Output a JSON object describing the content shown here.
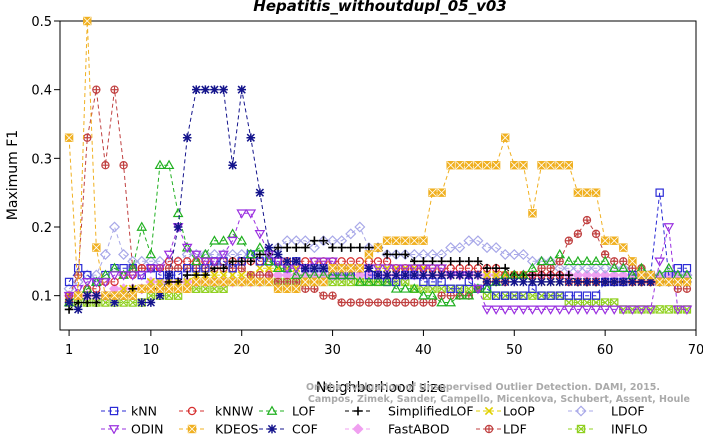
{
  "chart_data": {
    "type": "line",
    "title": "Hepatitis_withoutdupl_05_v03",
    "xlabel": "Neighborhood size",
    "ylabel": "Maximum F1",
    "xlim": [
      0,
      70
    ],
    "ylim": [
      0.05,
      0.5
    ],
    "xticks": [
      1,
      10,
      20,
      30,
      40,
      50,
      60,
      70
    ],
    "yticks": [
      0.1,
      0.2,
      0.3,
      0.4,
      0.5
    ],
    "credit_lines": [
      "Campos, Zimek, Sander, Campello, Micenkova, Schubert, Assent, Houle",
      "On the Evaluation of Unsupervised Outlier Detection. DAMI, 2015."
    ],
    "x": [
      1,
      2,
      3,
      4,
      5,
      6,
      7,
      8,
      9,
      10,
      11,
      12,
      13,
      14,
      15,
      16,
      17,
      18,
      19,
      20,
      21,
      22,
      23,
      24,
      25,
      26,
      27,
      28,
      29,
      30,
      31,
      32,
      33,
      34,
      35,
      36,
      37,
      38,
      39,
      40,
      41,
      42,
      43,
      44,
      45,
      46,
      47,
      48,
      49,
      50,
      51,
      52,
      53,
      54,
      55,
      56,
      57,
      58,
      59,
      60,
      61,
      62,
      63,
      64,
      65,
      66,
      67,
      68,
      69
    ],
    "series": [
      {
        "name": "kNN",
        "color": "#2b2bd6",
        "marker": "square",
        "values": [
          0.12,
          0.14,
          0.13,
          0.12,
          0.13,
          0.14,
          0.14,
          0.14,
          0.13,
          0.14,
          0.13,
          0.13,
          0.13,
          0.14,
          0.14,
          0.14,
          0.15,
          0.15,
          0.14,
          0.15,
          0.16,
          0.15,
          0.15,
          0.15,
          0.14,
          0.15,
          0.14,
          0.14,
          0.14,
          0.13,
          0.13,
          0.13,
          0.14,
          0.13,
          0.13,
          0.12,
          0.12,
          0.13,
          0.13,
          0.12,
          0.12,
          0.12,
          0.11,
          0.11,
          0.12,
          0.11,
          0.11,
          0.1,
          0.1,
          0.1,
          0.1,
          0.11,
          0.1,
          0.1,
          0.1,
          0.1,
          0.1,
          0.1,
          0.1,
          0.12,
          0.12,
          0.12,
          0.13,
          0.13,
          0.13,
          0.25,
          0.13,
          0.14,
          0.14
        ]
      },
      {
        "name": "kNNW",
        "color": "#d63030",
        "marker": "circle",
        "values": [
          0.09,
          0.1,
          0.11,
          0.11,
          0.12,
          0.12,
          0.13,
          0.13,
          0.14,
          0.14,
          0.14,
          0.15,
          0.15,
          0.15,
          0.15,
          0.15,
          0.15,
          0.15,
          0.15,
          0.15,
          0.15,
          0.15,
          0.15,
          0.15,
          0.15,
          0.15,
          0.15,
          0.15,
          0.15,
          0.15,
          0.15,
          0.15,
          0.15,
          0.15,
          0.15,
          0.15,
          0.14,
          0.14,
          0.14,
          0.14,
          0.14,
          0.14,
          0.14,
          0.14,
          0.14,
          0.14,
          0.14,
          0.14,
          0.13,
          0.13,
          0.13,
          0.13,
          0.13,
          0.13,
          0.13,
          0.12,
          0.12,
          0.12,
          0.12,
          0.12,
          0.12,
          0.12,
          0.12,
          0.12,
          0.12,
          0.12,
          0.12,
          0.12,
          0.12
        ]
      },
      {
        "name": "LOF",
        "color": "#20b020",
        "marker": "triangle-up",
        "values": [
          0.09,
          0.1,
          0.11,
          0.12,
          0.13,
          0.14,
          0.13,
          0.14,
          0.2,
          0.16,
          0.29,
          0.29,
          0.22,
          0.17,
          0.15,
          0.16,
          0.18,
          0.18,
          0.19,
          0.18,
          0.16,
          0.17,
          0.15,
          0.14,
          0.14,
          0.13,
          0.13,
          0.13,
          0.13,
          0.13,
          0.13,
          0.13,
          0.12,
          0.12,
          0.12,
          0.12,
          0.11,
          0.11,
          0.11,
          0.1,
          0.1,
          0.09,
          0.09,
          0.1,
          0.1,
          0.11,
          0.11,
          0.12,
          0.13,
          0.13,
          0.13,
          0.14,
          0.15,
          0.15,
          0.16,
          0.15,
          0.15,
          0.15,
          0.15,
          0.15,
          0.14,
          0.14,
          0.13,
          0.14,
          0.13,
          0.13,
          0.14,
          0.13,
          0.13
        ]
      },
      {
        "name": "SimplifiedLOF",
        "color": "#000000",
        "marker": "plus",
        "values": [
          0.08,
          0.09,
          0.09,
          0.09,
          0.1,
          0.1,
          0.1,
          0.11,
          0.11,
          0.11,
          0.11,
          0.12,
          0.12,
          0.13,
          0.13,
          0.13,
          0.14,
          0.14,
          0.15,
          0.15,
          0.15,
          0.16,
          0.16,
          0.17,
          0.17,
          0.17,
          0.17,
          0.18,
          0.18,
          0.17,
          0.17,
          0.17,
          0.17,
          0.17,
          0.17,
          0.16,
          0.16,
          0.16,
          0.15,
          0.15,
          0.15,
          0.15,
          0.15,
          0.15,
          0.15,
          0.15,
          0.14,
          0.14,
          0.14,
          0.13,
          0.13,
          0.13,
          0.13,
          0.13,
          0.13,
          0.13,
          0.12,
          0.12,
          0.12,
          0.12,
          0.12,
          0.12,
          0.12,
          0.12,
          0.12,
          0.12,
          0.12,
          0.12,
          0.12
        ]
      },
      {
        "name": "LoOP",
        "color": "#e0d000",
        "marker": "cross",
        "values": [
          0.1,
          0.1,
          0.1,
          0.1,
          0.1,
          0.1,
          0.11,
          0.11,
          0.11,
          0.12,
          0.12,
          0.12,
          0.12,
          0.12,
          0.13,
          0.13,
          0.13,
          0.13,
          0.13,
          0.13,
          0.13,
          0.14,
          0.14,
          0.14,
          0.14,
          0.14,
          0.14,
          0.14,
          0.14,
          0.14,
          0.14,
          0.14,
          0.14,
          0.14,
          0.14,
          0.14,
          0.14,
          0.14,
          0.14,
          0.14,
          0.13,
          0.13,
          0.13,
          0.13,
          0.13,
          0.13,
          0.13,
          0.13,
          0.13,
          0.13,
          0.13,
          0.12,
          0.12,
          0.12,
          0.12,
          0.12,
          0.12,
          0.12,
          0.12,
          0.12,
          0.12,
          0.12,
          0.12,
          0.12,
          0.12,
          0.12,
          0.12,
          0.12,
          0.12
        ]
      },
      {
        "name": "LDOF",
        "color": "#a8a8e8",
        "marker": "diamond",
        "values": [
          0.11,
          0.12,
          0.13,
          0.13,
          0.16,
          0.2,
          0.16,
          0.15,
          0.15,
          0.15,
          0.15,
          0.15,
          0.15,
          0.16,
          0.16,
          0.16,
          0.16,
          0.16,
          0.16,
          0.16,
          0.16,
          0.16,
          0.16,
          0.17,
          0.18,
          0.18,
          0.18,
          0.17,
          0.18,
          0.18,
          0.18,
          0.19,
          0.2,
          0.17,
          0.17,
          0.16,
          0.16,
          0.16,
          0.16,
          0.16,
          0.16,
          0.16,
          0.17,
          0.17,
          0.18,
          0.18,
          0.17,
          0.17,
          0.16,
          0.16,
          0.16,
          0.15,
          0.15,
          0.15,
          0.14,
          0.14,
          0.14,
          0.14,
          0.14,
          0.14,
          0.14,
          0.14,
          0.14,
          0.13,
          0.13,
          0.13,
          0.13,
          0.13,
          0.13
        ]
      },
      {
        "name": "ODIN",
        "color": "#9a30e0",
        "marker": "triangle-down",
        "values": [
          0.1,
          0.11,
          0.12,
          0.12,
          0.12,
          0.13,
          0.13,
          0.13,
          0.13,
          0.14,
          0.14,
          0.16,
          0.2,
          0.17,
          0.16,
          0.15,
          0.15,
          0.16,
          0.18,
          0.22,
          0.22,
          0.19,
          0.16,
          0.15,
          0.14,
          0.14,
          0.14,
          0.15,
          0.15,
          0.15,
          0.14,
          0.14,
          0.14,
          0.14,
          0.14,
          0.14,
          0.14,
          0.14,
          0.14,
          0.14,
          0.14,
          0.14,
          0.13,
          0.13,
          0.13,
          0.11,
          0.08,
          0.08,
          0.08,
          0.08,
          0.08,
          0.08,
          0.08,
          0.08,
          0.08,
          0.08,
          0.08,
          0.08,
          0.08,
          0.08,
          0.08,
          0.08,
          0.08,
          0.08,
          0.08,
          0.15,
          0.2,
          0.08,
          0.08
        ]
      },
      {
        "name": "KDEOS",
        "color": "#f0b020",
        "marker": "square-x",
        "values": [
          0.33,
          0.1,
          0.5,
          0.17,
          0.1,
          0.1,
          0.1,
          0.1,
          0.11,
          0.11,
          0.11,
          0.11,
          0.11,
          0.11,
          0.12,
          0.12,
          0.12,
          0.12,
          0.12,
          0.12,
          0.12,
          0.12,
          0.12,
          0.11,
          0.11,
          0.11,
          0.12,
          0.12,
          0.12,
          0.14,
          0.14,
          0.14,
          0.14,
          0.16,
          0.17,
          0.18,
          0.18,
          0.18,
          0.18,
          0.18,
          0.25,
          0.25,
          0.29,
          0.29,
          0.29,
          0.29,
          0.29,
          0.29,
          0.33,
          0.29,
          0.29,
          0.22,
          0.29,
          0.29,
          0.29,
          0.29,
          0.25,
          0.25,
          0.25,
          0.18,
          0.18,
          0.17,
          0.15,
          0.13,
          0.13,
          0.12,
          0.12,
          0.12,
          0.12
        ]
      },
      {
        "name": "COF",
        "color": "#14148c",
        "marker": "star",
        "values": [
          0.09,
          0.08,
          0.1,
          0.1,
          0.1,
          0.09,
          0.1,
          0.1,
          0.09,
          0.09,
          0.1,
          0.13,
          0.2,
          0.33,
          0.4,
          0.4,
          0.4,
          0.4,
          0.29,
          0.4,
          0.33,
          0.25,
          0.17,
          0.16,
          0.15,
          0.15,
          0.14,
          0.14,
          0.14,
          0.14,
          0.14,
          0.14,
          0.14,
          0.14,
          0.13,
          0.13,
          0.13,
          0.13,
          0.13,
          0.13,
          0.13,
          0.13,
          0.13,
          0.13,
          0.13,
          0.13,
          0.12,
          0.12,
          0.12,
          0.12,
          0.12,
          0.12,
          0.12,
          0.12,
          0.12,
          0.12,
          0.12,
          0.12,
          0.12,
          0.12,
          0.12,
          0.12,
          0.12,
          0.12,
          0.12,
          0.12,
          0.12,
          0.12,
          0.12
        ]
      },
      {
        "name": "FastABOD",
        "color": "#f0a0f0",
        "marker": "diamond-filled",
        "values": [
          0.1,
          0.1,
          0.1,
          0.1,
          0.1,
          0.11,
          0.11,
          0.11,
          0.11,
          0.12,
          0.12,
          0.12,
          0.12,
          0.12,
          0.12,
          0.12,
          0.12,
          0.12,
          0.12,
          0.12,
          0.12,
          0.12,
          0.13,
          0.13,
          0.13,
          0.13,
          0.13,
          0.13,
          0.13,
          0.13,
          0.13,
          0.13,
          0.13,
          0.13,
          0.13,
          0.13,
          0.13,
          0.13,
          0.13,
          0.13,
          0.13,
          0.13,
          0.13,
          0.13,
          0.13,
          0.13,
          0.13,
          0.13,
          0.13,
          0.13,
          0.13,
          0.13,
          0.13,
          0.13,
          0.13,
          0.13,
          0.13,
          0.13,
          0.13,
          0.13,
          0.13,
          0.13,
          0.13,
          0.13,
          0.13,
          0.13,
          0.13,
          0.13,
          0.13
        ]
      },
      {
        "name": "LDF",
        "color": "#c04040",
        "marker": "circle-plus",
        "values": [
          0.1,
          0.13,
          0.33,
          0.4,
          0.29,
          0.4,
          0.29,
          0.14,
          0.14,
          0.14,
          0.14,
          0.14,
          0.14,
          0.14,
          0.14,
          0.14,
          0.14,
          0.14,
          0.14,
          0.14,
          0.13,
          0.13,
          0.13,
          0.12,
          0.12,
          0.12,
          0.11,
          0.11,
          0.1,
          0.1,
          0.09,
          0.09,
          0.09,
          0.09,
          0.09,
          0.09,
          0.09,
          0.09,
          0.09,
          0.09,
          0.09,
          0.1,
          0.1,
          0.1,
          0.1,
          0.11,
          0.12,
          0.12,
          0.12,
          0.13,
          0.13,
          0.13,
          0.14,
          0.14,
          0.15,
          0.18,
          0.19,
          0.21,
          0.19,
          0.16,
          0.15,
          0.15,
          0.14,
          0.14,
          0.12,
          0.12,
          0.12,
          0.11,
          0.11
        ]
      },
      {
        "name": "INFLO",
        "color": "#90d020",
        "marker": "square-cross",
        "values": [
          0.09,
          0.09,
          0.09,
          0.09,
          0.09,
          0.09,
          0.09,
          0.09,
          0.09,
          0.1,
          0.1,
          0.1,
          0.1,
          0.11,
          0.11,
          0.11,
          0.11,
          0.11,
          0.12,
          0.12,
          0.12,
          0.12,
          0.12,
          0.12,
          0.12,
          0.12,
          0.12,
          0.12,
          0.12,
          0.12,
          0.12,
          0.12,
          0.12,
          0.12,
          0.12,
          0.12,
          0.12,
          0.12,
          0.11,
          0.11,
          0.11,
          0.11,
          0.11,
          0.11,
          0.11,
          0.11,
          0.1,
          0.1,
          0.1,
          0.1,
          0.1,
          0.1,
          0.1,
          0.1,
          0.1,
          0.09,
          0.09,
          0.09,
          0.09,
          0.09,
          0.09,
          0.08,
          0.08,
          0.08,
          0.08,
          0.08,
          0.08,
          0.08,
          0.08
        ]
      }
    ]
  }
}
